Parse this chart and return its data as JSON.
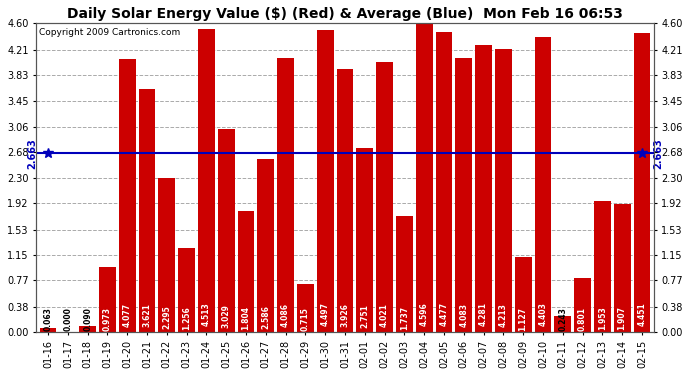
{
  "title": "Daily Solar Energy Value ($) (Red) & Average (Blue)  Mon Feb 16 06:53",
  "copyright": "Copyright 2009 Cartronics.com",
  "categories": [
    "01-16",
    "01-17",
    "01-18",
    "01-19",
    "01-20",
    "01-21",
    "01-22",
    "01-23",
    "01-24",
    "01-25",
    "01-26",
    "01-27",
    "01-28",
    "01-29",
    "01-30",
    "01-31",
    "02-01",
    "02-02",
    "02-03",
    "02-04",
    "02-05",
    "02-06",
    "02-07",
    "02-08",
    "02-09",
    "02-10",
    "02-11",
    "02-12",
    "02-13",
    "02-14",
    "02-15"
  ],
  "values": [
    0.063,
    0.0,
    0.09,
    0.973,
    4.077,
    3.621,
    2.295,
    1.256,
    4.513,
    3.029,
    1.804,
    2.586,
    4.086,
    0.715,
    4.497,
    3.926,
    2.751,
    4.021,
    1.737,
    4.596,
    4.477,
    4.083,
    4.281,
    4.213,
    1.127,
    4.403,
    0.243,
    0.801,
    1.953,
    1.907,
    4.451
  ],
  "average": 2.663,
  "ylim": [
    0.0,
    4.6
  ],
  "yticks": [
    0.0,
    0.38,
    0.77,
    1.15,
    1.53,
    1.92,
    2.3,
    2.68,
    3.06,
    3.45,
    3.83,
    4.21,
    4.6
  ],
  "bar_color": "#cc0000",
  "avg_line_color": "#0000bb",
  "avg_label_color": "#0000bb",
  "background_color": "#ffffff",
  "grid_color": "#aaaaaa",
  "title_fontsize": 10,
  "copyright_fontsize": 6.5,
  "tick_fontsize": 7,
  "value_fontsize": 5.5
}
